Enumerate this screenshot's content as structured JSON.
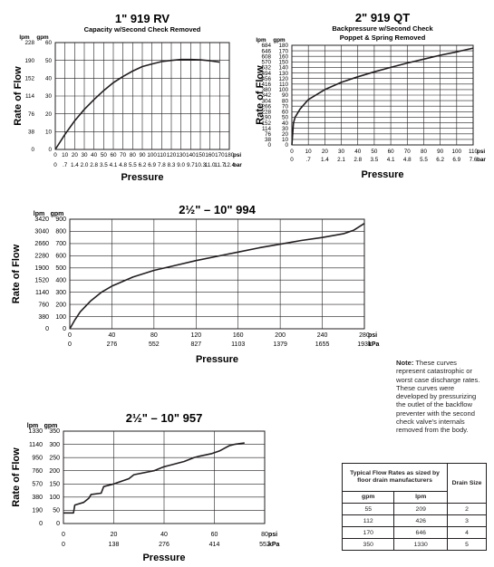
{
  "charts": [
    {
      "key": "c919rv",
      "title": "1\" 919 RV",
      "subtitle": "Capacity w/Second Check Removed",
      "xlabel": "Pressure",
      "ylabel": "Rate of Flow",
      "y_unit_outer": "lpm",
      "y_unit_inner": "gpm",
      "x_unit1": "psi",
      "x_unit2": "bar",
      "x_ticks": [
        "0",
        "10",
        "20",
        "30",
        "40",
        "50",
        "60",
        "70",
        "80",
        "90",
        "100",
        "110",
        "120",
        "130",
        "140",
        "150",
        "160",
        "170",
        "180"
      ],
      "x_ticks2": [
        "0",
        ".7",
        "1.4",
        "2.0",
        "2.8",
        "3.5",
        "4.1",
        "4.8",
        "5.5",
        "6.2",
        "6.9",
        "7.8",
        "8.3",
        "9.0",
        "9.7",
        "10.3",
        "11.0",
        "11.7",
        "12.4"
      ],
      "y_ticks_inner": [
        "0",
        "10",
        "20",
        "30",
        "40",
        "50",
        "60"
      ],
      "y_ticks_outer": [
        "0",
        "38",
        "76",
        "114",
        "152",
        "190",
        "228"
      ]
    },
    {
      "key": "c919qt",
      "title": "2\" 919 QT",
      "subtitle": "Backpressure w/Second Check",
      "subtitle2": "Poppet & Spring Removed",
      "xlabel": "Pressure",
      "ylabel": "Rate of Flow",
      "y_unit_outer": "lpm",
      "y_unit_inner": "gpm",
      "x_unit1": "psi",
      "x_unit2": "bar",
      "x_ticks": [
        "0",
        "10",
        "20",
        "30",
        "40",
        "50",
        "60",
        "70",
        "80",
        "90",
        "100",
        "110"
      ],
      "x_ticks2": [
        "0",
        ".7",
        "1.4",
        "2.1",
        "2.8",
        "3.5",
        "4.1",
        "4.8",
        "5.5",
        "6.2",
        "6.9",
        "7.6"
      ],
      "y_ticks_inner": [
        "0",
        "10",
        "20",
        "30",
        "40",
        "50",
        "60",
        "70",
        "80",
        "90",
        "100",
        "110",
        "120",
        "130",
        "140",
        "150",
        "160",
        "170",
        "180"
      ],
      "y_ticks_outer": [
        "0",
        "38",
        "76",
        "114",
        "152",
        "190",
        "228",
        "266",
        "304",
        "342",
        "380",
        "416",
        "456",
        "494",
        "532",
        "570",
        "608",
        "646",
        "684"
      ]
    },
    {
      "key": "c994",
      "title": "2½\" – 10\" 994",
      "xlabel": "Pressure",
      "ylabel": "Rate of Flow",
      "y_unit_outer": "lpm",
      "y_unit_inner": "gpm",
      "x_unit1": "psi",
      "x_unit2": "kPa",
      "x_ticks": [
        "0",
        "40",
        "80",
        "120",
        "160",
        "200",
        "240",
        "280"
      ],
      "x_ticks2": [
        "0",
        "276",
        "552",
        "827",
        "1103",
        "1379",
        "1655",
        "1931"
      ],
      "y_ticks_inner": [
        "0",
        "100",
        "200",
        "300",
        "400",
        "500",
        "600",
        "700",
        "800",
        "900"
      ],
      "y_ticks_outer": [
        "0",
        "380",
        "760",
        "1140",
        "1520",
        "1900",
        "2280",
        "2660",
        "3040",
        "3420"
      ]
    },
    {
      "key": "c957",
      "title": "2½\" – 10\" 957",
      "xlabel": "Pressure",
      "ylabel": "Rate of Flow",
      "y_unit_outer": "lpm",
      "y_unit_inner": "gpm",
      "x_unit1": "psi",
      "x_unit2": "kPa",
      "x_ticks": [
        "0",
        "20",
        "40",
        "60",
        "80"
      ],
      "x_ticks2": [
        "0",
        "138",
        "276",
        "414",
        "552"
      ],
      "y_ticks_inner": [
        "0",
        "50",
        "100",
        "150",
        "200",
        "250",
        "300",
        "350"
      ],
      "y_ticks_outer": [
        "0",
        "190",
        "380",
        "570",
        "760",
        "950",
        "1140",
        "1330"
      ]
    }
  ],
  "chart_data": [
    {
      "type": "line",
      "title": "1\" 919 RV",
      "subtitle": "Capacity w/Second Check Removed",
      "xlabel": "Pressure (psi)",
      "ylabel": "Rate of Flow (gpm)",
      "xlim": [
        0,
        180
      ],
      "ylim": [
        0,
        60
      ],
      "grid": true,
      "x": [
        0,
        10,
        20,
        30,
        40,
        50,
        60,
        70,
        80,
        90,
        100,
        110,
        120,
        130,
        140,
        150,
        160,
        170
      ],
      "y": [
        0,
        8.5,
        16,
        22.5,
        28,
        33,
        37.5,
        41,
        44,
        46.5,
        48,
        49.3,
        50,
        50.5,
        50.5,
        50.3,
        49.8,
        49
      ]
    },
    {
      "type": "line",
      "title": "2\" 919 QT",
      "subtitle": "Backpressure w/Second Check Poppet & Spring Removed",
      "xlabel": "Pressure (psi)",
      "ylabel": "Rate of Flow (gpm)",
      "xlim": [
        0,
        110
      ],
      "ylim": [
        0,
        180
      ],
      "grid": true,
      "x": [
        0,
        1,
        2,
        5,
        10,
        20,
        30,
        40,
        50,
        60,
        70,
        80,
        90,
        100,
        110
      ],
      "y": [
        0,
        40,
        50,
        65,
        82,
        100,
        113,
        123,
        132,
        140,
        148,
        155,
        162,
        168,
        175
      ]
    },
    {
      "type": "line",
      "title": "2½\" – 10\" 994",
      "xlabel": "Pressure (psi)",
      "ylabel": "Rate of Flow (gpm)",
      "xlim": [
        0,
        280
      ],
      "ylim": [
        0,
        900
      ],
      "grid": true,
      "x": [
        0,
        5,
        10,
        20,
        30,
        40,
        60,
        80,
        100,
        120,
        140,
        160,
        180,
        200,
        220,
        240,
        260,
        270,
        280
      ],
      "y": [
        0,
        75,
        140,
        230,
        300,
        350,
        425,
        480,
        520,
        560,
        595,
        630,
        665,
        695,
        725,
        750,
        780,
        810,
        865
      ]
    },
    {
      "type": "line",
      "title": "2½\" – 10\" 957",
      "xlabel": "Pressure (psi)",
      "ylabel": "Rate of Flow (gpm)",
      "xlim": [
        0,
        80
      ],
      "ylim": [
        0,
        350
      ],
      "grid": true,
      "x": [
        0,
        4,
        4.5,
        8,
        10,
        11,
        15,
        16,
        20,
        26,
        28,
        36,
        40,
        42,
        48,
        52,
        54,
        59,
        62,
        64,
        66,
        68,
        72
      ],
      "y": [
        40,
        40,
        70,
        80,
        95,
        110,
        115,
        140,
        150,
        170,
        185,
        200,
        215,
        220,
        235,
        250,
        255,
        265,
        275,
        285,
        295,
        300,
        305
      ]
    }
  ],
  "note": {
    "bold": "Note:",
    "text": "These curves represent catastrophic or worst case discharge rates. These curves were developed by pressurizing the outlet of the backflow preventer with the second check valve's internals removed from the body."
  },
  "drain_table": {
    "heading": "Typical Flow Rates as sized by floor drain manufacturers",
    "col_gpm": "gpm",
    "col_lpm": "lpm",
    "col_size": "Drain Size",
    "rows": [
      {
        "gpm": "55",
        "lpm": "209",
        "size": "2"
      },
      {
        "gpm": "112",
        "lpm": "426",
        "size": "3"
      },
      {
        "gpm": "170",
        "lpm": "646",
        "size": "4"
      },
      {
        "gpm": "350",
        "lpm": "1330",
        "size": "5"
      }
    ]
  }
}
